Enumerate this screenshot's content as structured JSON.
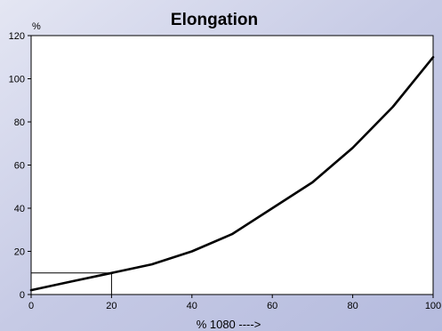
{
  "chart_data": {
    "type": "line",
    "title": "Elongation",
    "xlabel": "% 1080 ---->",
    "ylabel": "%",
    "xlim": [
      0,
      100
    ],
    "ylim": [
      0,
      120
    ],
    "xticks": [
      0,
      20,
      40,
      60,
      80,
      100
    ],
    "yticks": [
      0,
      20,
      40,
      60,
      80,
      100,
      120
    ],
    "grid": false,
    "series": [
      {
        "x": [
          0,
          10,
          20,
          30,
          40,
          50,
          60,
          70,
          80,
          90,
          100
        ],
        "y": [
          2,
          6,
          10,
          14,
          20,
          28,
          40,
          52,
          68,
          87,
          110
        ]
      }
    ],
    "reference": {
      "x": 20,
      "y": 10
    },
    "colors": {
      "background": "#c9cde6",
      "plot_area": "#ffffff",
      "line": "#000000"
    }
  }
}
